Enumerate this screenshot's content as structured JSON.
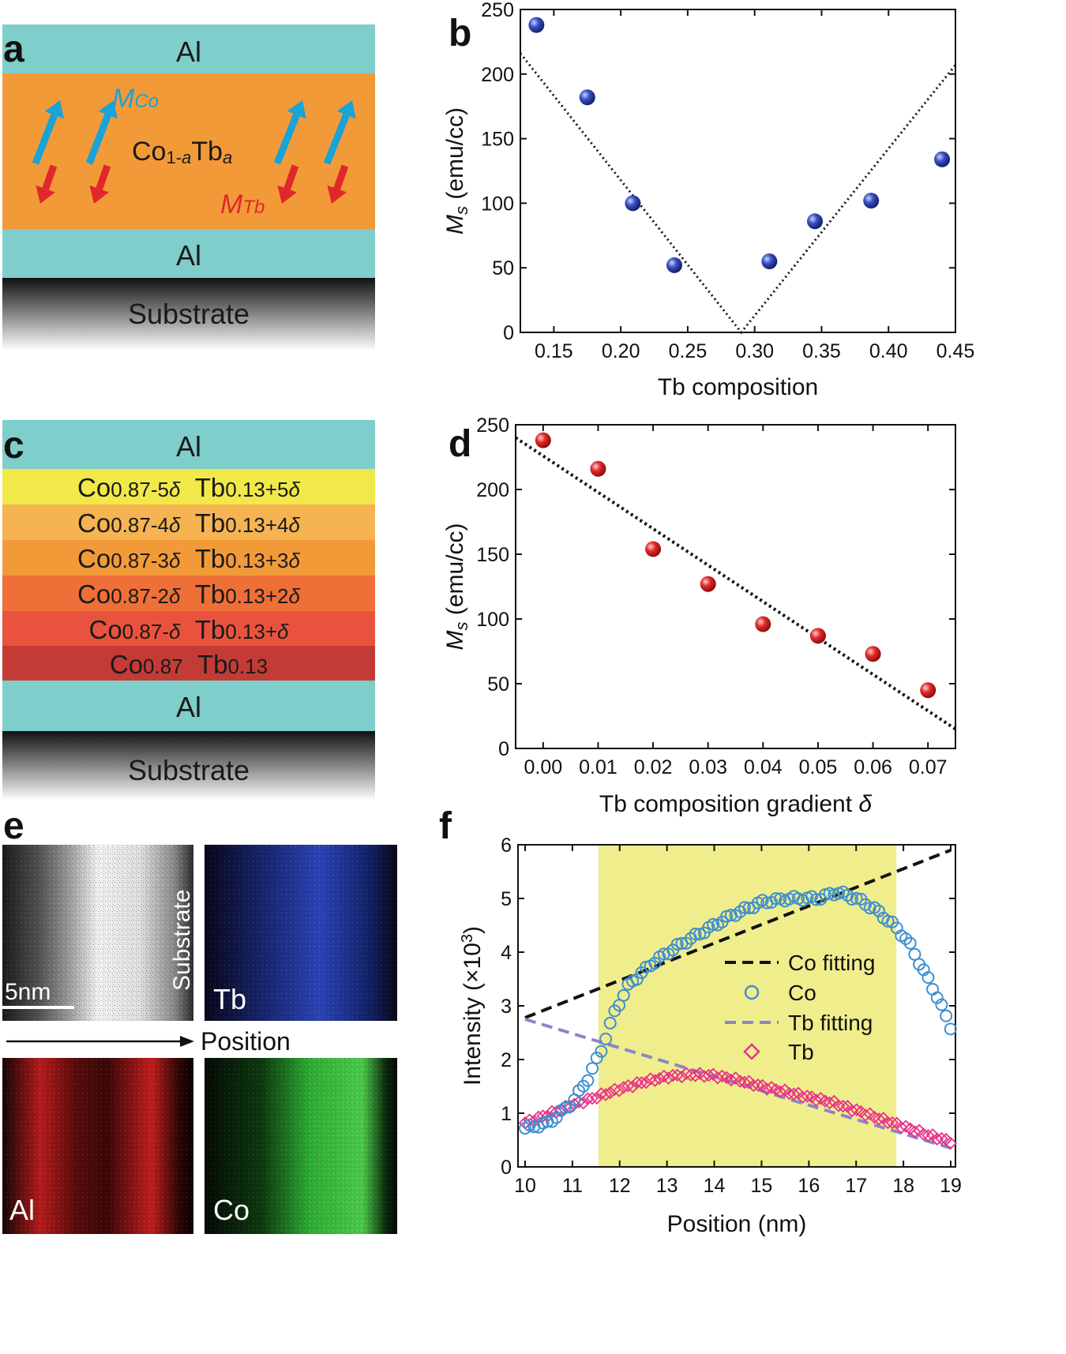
{
  "colors": {
    "al": "#7fcecb",
    "orange": "#f39a38",
    "mco_arrow": "#1aa3d6",
    "mtb_arrow": "#e0272a",
    "grad1": "#f1e84a",
    "grad2": "#f6b352",
    "grad3": "#f39a38",
    "grad4": "#ee6f37",
    "grad5": "#e9533e",
    "grad6": "#c33b35",
    "dot_b": "#2a3d9c",
    "dot_d": "#d92222",
    "co_marker": "#3f8fd0",
    "tb_marker": "#e8338a",
    "tb_fit": "#8a86c9",
    "highlight": "#f0ee8c"
  },
  "panel_a": {
    "label": "a",
    "al_top": "Al",
    "al_bottom": "Al",
    "substrate": "Substrate",
    "m_co": "M",
    "m_co_sub": "Co",
    "m_tb": "M",
    "m_tb_sub": "Tb",
    "alloy_main": "Co",
    "alloy_sub1": "1-",
    "alloy_sub2": "a",
    "alloy_tb": "Tb",
    "alloy_sub3": "a"
  },
  "panel_c": {
    "label": "c",
    "al_top": "Al",
    "al_bottom": "Al",
    "substrate": "Substrate",
    "layers": [
      {
        "co": "Co",
        "co_sub": "0.87-5",
        "tb": "Tb",
        "tb_sub": "0.13+5",
        "delta": "δ"
      },
      {
        "co": "Co",
        "co_sub": "0.87-4",
        "tb": "Tb",
        "tb_sub": "0.13+4",
        "delta": "δ"
      },
      {
        "co": "Co",
        "co_sub": "0.87-3",
        "tb": "Tb",
        "tb_sub": "0.13+3",
        "delta": "δ"
      },
      {
        "co": "Co",
        "co_sub": "0.87-2",
        "tb": "Tb",
        "tb_sub": "0.13+2",
        "delta": "δ"
      },
      {
        "co": "Co",
        "co_sub": "0.87-",
        "tb": "Tb",
        "tb_sub": "0.13+",
        "delta": "δ"
      },
      {
        "co": "Co",
        "co_sub": "0.87",
        "tb": "Tb",
        "tb_sub": "0.13",
        "delta": ""
      }
    ]
  },
  "panel_e": {
    "label": "e",
    "scale": "5nm",
    "substrate": "Substrate",
    "tb": "Tb",
    "al": "Al",
    "co": "Co",
    "position": "Position"
  },
  "chart_data": [
    {
      "id": "b",
      "label": "b",
      "type": "scatter",
      "xlabel": "Tb composition",
      "ylabel_main": "M",
      "ylabel_sub": "s",
      "ylabel_unit": " (emu/cc)",
      "xlim": [
        0.125,
        0.45
      ],
      "ylim": [
        0,
        250
      ],
      "xticks": [
        0.15,
        0.2,
        0.25,
        0.3,
        0.35,
        0.4,
        0.45
      ],
      "xtick_labels": [
        "0.15",
        "0.20",
        "0.25",
        "0.30",
        "0.35",
        "0.40",
        "0.45"
      ],
      "yticks": [
        0,
        50,
        100,
        150,
        200,
        250
      ],
      "ytick_labels": [
        "0",
        "50",
        "100",
        "150",
        "200",
        "250"
      ],
      "points": [
        [
          0.137,
          238
        ],
        [
          0.175,
          182
        ],
        [
          0.209,
          100
        ],
        [
          0.24,
          52
        ],
        [
          0.311,
          55
        ],
        [
          0.345,
          86
        ],
        [
          0.387,
          102
        ],
        [
          0.44,
          134
        ]
      ],
      "fit": [
        [
          0.125,
          216
        ],
        [
          0.29,
          0
        ],
        [
          0.45,
          207
        ]
      ]
    },
    {
      "id": "d",
      "label": "d",
      "type": "scatter",
      "xlabel_main": "Tb composition gradient ",
      "xlabel_delta": "δ",
      "ylabel_main": "M",
      "ylabel_sub": "s",
      "ylabel_unit": " (emu/cc)",
      "xlim": [
        -0.005,
        0.075
      ],
      "ylim": [
        0,
        250
      ],
      "xticks": [
        0,
        0.01,
        0.02,
        0.03,
        0.04,
        0.05,
        0.06,
        0.07
      ],
      "xtick_labels": [
        "0.00",
        "0.01",
        "0.02",
        "0.03",
        "0.04",
        "0.05",
        "0.06",
        "0.07"
      ],
      "yticks": [
        0,
        50,
        100,
        150,
        200,
        250
      ],
      "ytick_labels": [
        "0",
        "50",
        "100",
        "150",
        "200",
        "250"
      ],
      "points": [
        [
          0.0,
          238
        ],
        [
          0.01,
          216
        ],
        [
          0.02,
          154
        ],
        [
          0.03,
          127
        ],
        [
          0.04,
          96
        ],
        [
          0.05,
          87
        ],
        [
          0.06,
          73
        ],
        [
          0.07,
          45
        ]
      ],
      "fit": [
        [
          -0.005,
          240
        ],
        [
          0.075,
          15
        ]
      ]
    },
    {
      "id": "f",
      "label": "f",
      "type": "line",
      "xlabel": "Position (nm)",
      "ylabel_main": "Intensity (×10",
      "ylabel_sup": "3",
      "ylabel_end": ")",
      "xlim": [
        9.85,
        19.1
      ],
      "ylim": [
        0,
        6
      ],
      "xticks": [
        10,
        11,
        12,
        13,
        14,
        15,
        16,
        17,
        18,
        19
      ],
      "xtick_labels": [
        "10",
        "11",
        "12",
        "13",
        "14",
        "15",
        "16",
        "17",
        "18",
        "19"
      ],
      "yticks": [
        0,
        1,
        2,
        3,
        4,
        5,
        6
      ],
      "ytick_labels": [
        "0",
        "1",
        "2",
        "3",
        "4",
        "5",
        "6"
      ],
      "highlight_x": [
        11.55,
        17.85
      ],
      "co_fit": [
        [
          10,
          2.78
        ],
        [
          19,
          5.9
        ]
      ],
      "tb_fit": [
        [
          10,
          2.75
        ],
        [
          19,
          0.35
        ]
      ],
      "co_profile": [
        [
          10,
          0.72
        ],
        [
          10.5,
          0.82
        ],
        [
          11,
          1.2
        ],
        [
          11.3,
          1.6
        ],
        [
          11.6,
          2.15
        ],
        [
          11.9,
          2.9
        ],
        [
          12.2,
          3.4
        ],
        [
          12.7,
          3.8
        ],
        [
          13.2,
          4.1
        ],
        [
          13.8,
          4.4
        ],
        [
          14.4,
          4.7
        ],
        [
          15,
          4.93
        ],
        [
          15.6,
          5.0
        ],
        [
          16.2,
          5.0
        ],
        [
          16.6,
          5.12
        ],
        [
          17,
          5.0
        ],
        [
          17.4,
          4.8
        ],
        [
          17.8,
          4.5
        ],
        [
          18.1,
          4.2
        ],
        [
          18.4,
          3.7
        ],
        [
          18.7,
          3.2
        ],
        [
          19,
          2.6
        ]
      ],
      "tb_profile": [
        [
          10,
          0.82
        ],
        [
          10.5,
          0.98
        ],
        [
          11,
          1.15
        ],
        [
          11.5,
          1.3
        ],
        [
          12,
          1.45
        ],
        [
          12.5,
          1.58
        ],
        [
          13,
          1.68
        ],
        [
          13.5,
          1.72
        ],
        [
          14,
          1.7
        ],
        [
          14.5,
          1.62
        ],
        [
          15,
          1.5
        ],
        [
          15.5,
          1.4
        ],
        [
          16,
          1.3
        ],
        [
          16.5,
          1.2
        ],
        [
          17,
          1.05
        ],
        [
          17.5,
          0.9
        ],
        [
          18,
          0.75
        ],
        [
          18.5,
          0.6
        ],
        [
          19,
          0.47
        ]
      ],
      "legend": [
        {
          "label": "Co fitting",
          "kind": "dash",
          "color": "#111111"
        },
        {
          "label": "Co",
          "kind": "circle",
          "color": "#3f8fd0"
        },
        {
          "label": "Tb fitting",
          "kind": "dash",
          "color": "#8a86c9"
        },
        {
          "label": "Tb",
          "kind": "diamond",
          "color": "#e8338a"
        }
      ]
    }
  ]
}
